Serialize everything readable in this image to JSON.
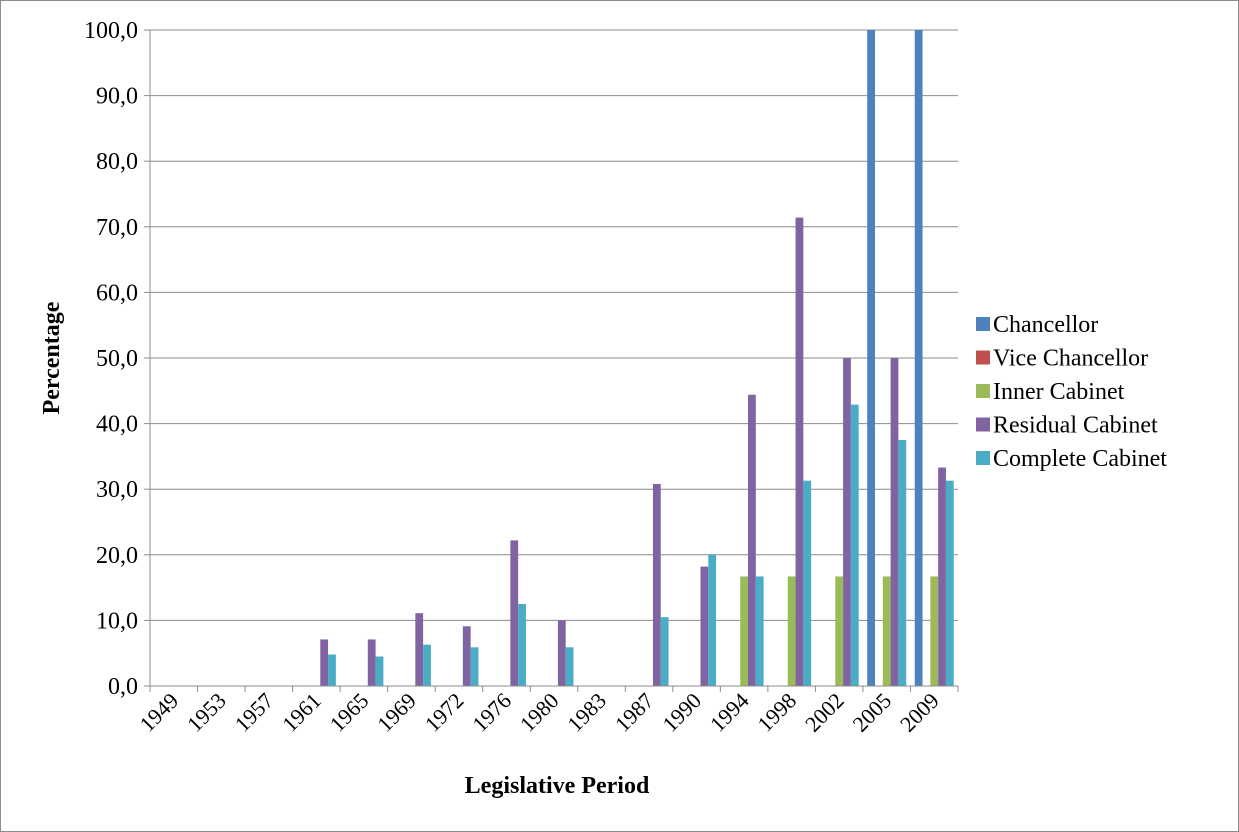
{
  "chart_data": {
    "type": "bar",
    "title": "",
    "xlabel": "Legislative Period",
    "ylabel": "Percentage",
    "ylim": [
      0,
      100
    ],
    "yticks": [
      "0,0",
      "10,0",
      "20,0",
      "30,0",
      "40,0",
      "50,0",
      "60,0",
      "70,0",
      "80,0",
      "90,0",
      "100,0"
    ],
    "grid": true,
    "legend_position": "right",
    "categories": [
      "1949",
      "1953",
      "1957",
      "1961",
      "1965",
      "1969",
      "1972",
      "1976",
      "1980",
      "1983",
      "1987",
      "1990",
      "1994",
      "1998",
      "2002",
      "2005",
      "2009"
    ],
    "series": [
      {
        "name": "Chancellor",
        "color": "#4f81bd",
        "values": [
          0,
          0,
          0,
          0,
          0,
          0,
          0,
          0,
          0,
          0,
          0,
          0,
          0,
          0,
          0,
          100,
          100
        ]
      },
      {
        "name": "Vice Chancellor",
        "color": "#c0504d",
        "values": [
          0,
          0,
          0,
          0,
          0,
          0,
          0,
          0,
          0,
          0,
          0,
          0,
          0,
          0,
          0,
          0,
          0
        ]
      },
      {
        "name": "Inner Cabinet",
        "color": "#9bbb59",
        "values": [
          0,
          0,
          0,
          0,
          0,
          0,
          0,
          0,
          0,
          0,
          0,
          0,
          16.7,
          16.7,
          16.7,
          16.7,
          16.7
        ]
      },
      {
        "name": "Residual Cabinet",
        "color": "#8064a2",
        "values": [
          0,
          0,
          0,
          7.1,
          7.1,
          11.1,
          9.1,
          22.2,
          10.0,
          0,
          30.8,
          18.2,
          44.4,
          71.4,
          50.0,
          50.0,
          33.3
        ]
      },
      {
        "name": "Complete Cabinet",
        "color": "#4bacc6",
        "values": [
          0,
          0,
          0,
          4.8,
          4.5,
          6.3,
          5.9,
          12.5,
          5.9,
          0,
          10.5,
          20.0,
          16.7,
          31.3,
          42.9,
          37.5,
          31.3
        ]
      }
    ]
  }
}
